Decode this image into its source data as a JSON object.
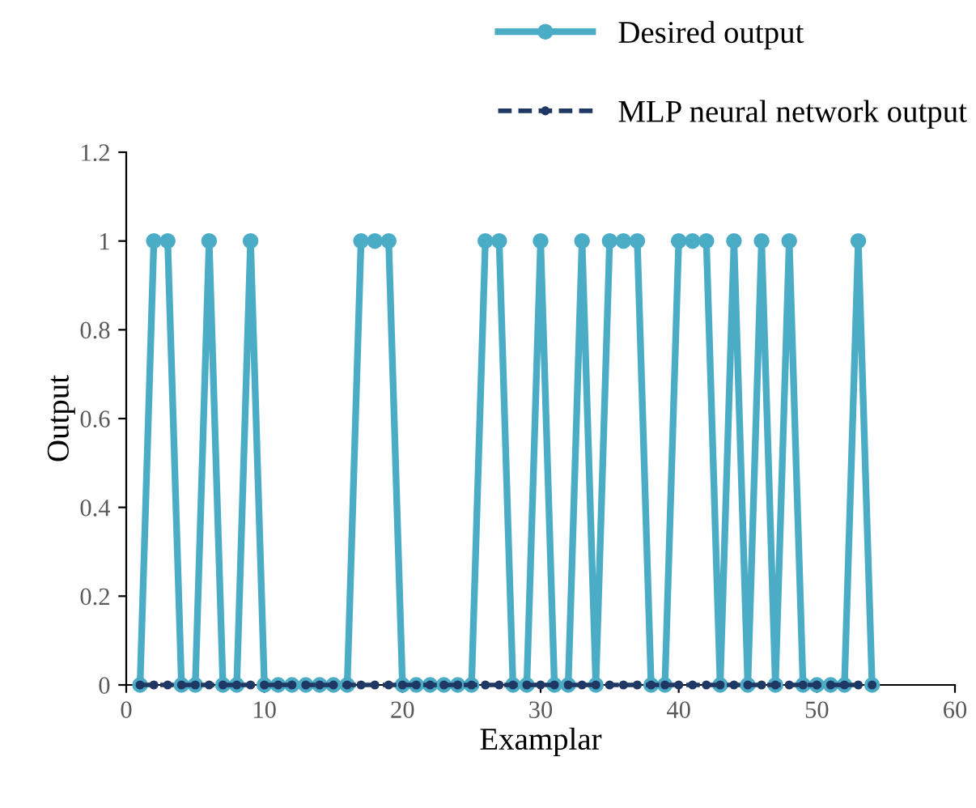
{
  "chart_data": {
    "type": "line",
    "xlabel": "Examplar",
    "ylabel": "Output",
    "x": [
      1,
      2,
      3,
      4,
      5,
      6,
      7,
      8,
      9,
      10,
      11,
      12,
      13,
      14,
      15,
      16,
      17,
      18,
      19,
      20,
      21,
      22,
      23,
      24,
      25,
      26,
      27,
      28,
      29,
      30,
      31,
      32,
      33,
      34,
      35,
      36,
      37,
      38,
      39,
      40,
      41,
      42,
      43,
      44,
      45,
      46,
      47,
      48,
      49,
      50,
      51,
      52,
      53,
      54
    ],
    "series": [
      {
        "name": "Desired output",
        "color": "#4bacc6",
        "line_style": "solid",
        "values": [
          0,
          1,
          1,
          0,
          0,
          1,
          0,
          0,
          1,
          0,
          0,
          0,
          0,
          0,
          0,
          0,
          1,
          1,
          1,
          0,
          0,
          0,
          0,
          0,
          0,
          1,
          1,
          0,
          0,
          1,
          0,
          0,
          1,
          0,
          1,
          1,
          1,
          0,
          0,
          1,
          1,
          1,
          0,
          1,
          0,
          1,
          0,
          1,
          0,
          0,
          0,
          0,
          1,
          0
        ]
      },
      {
        "name": "MLP neural network output",
        "color": "#1f3864",
        "line_style": "dashed",
        "values": [
          0,
          0,
          0,
          0,
          0,
          0,
          0,
          0,
          0,
          0,
          0,
          0,
          0,
          0,
          0,
          0,
          0,
          0,
          0,
          0,
          0,
          0,
          0,
          0,
          0,
          0,
          0,
          0,
          0,
          0,
          0,
          0,
          0,
          0,
          0,
          0,
          0,
          0,
          0,
          0,
          0,
          0,
          0,
          0,
          0,
          0,
          0,
          0,
          0,
          0,
          0,
          0,
          0,
          0
        ]
      }
    ],
    "marker": "circle",
    "xlim": [
      0,
      60
    ],
    "xticks": [
      0,
      10,
      20,
      30,
      40,
      50,
      60
    ],
    "ylim": [
      0,
      1.2
    ],
    "yticks": [
      0,
      0.2,
      0.4,
      0.6,
      0.8,
      1,
      1.2
    ],
    "grid": false,
    "legend": "top right"
  }
}
